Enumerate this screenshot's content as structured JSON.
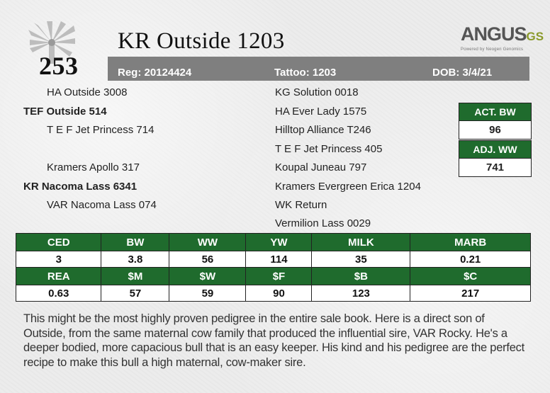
{
  "header": {
    "lot": "253",
    "name": "KR Outside 1203",
    "reg": "Reg: 20124424",
    "tattoo": "Tattoo: 1203",
    "dob": "DOB: 3/4/21"
  },
  "logo": {
    "main": "ANGUS",
    "suffix": "GS",
    "tagline": "Powered by Neogen Genomics"
  },
  "pedigree": {
    "sire_sire": "HA Outside 3008",
    "sire": "TEF Outside 514",
    "sire_dam": "T E F Jet Princess 714",
    "dam_sire": "Kramers Apollo 317",
    "dam": "KR Nacoma Lass 6341",
    "dam_dam": "VAR Nacoma Lass 074",
    "right": [
      "KG Solution 0018",
      "HA Ever Lady 1575",
      "Hilltop Alliance T246",
      "T E F Jet Princess 405",
      "Koupal Juneau 797",
      "Kramers Evergreen Erica 1204",
      "WK Return",
      "Vermilion Lass 0029"
    ]
  },
  "performance": {
    "act_bw": {
      "label": "ACT. BW",
      "value": "96"
    },
    "adj_ww": {
      "label": "ADJ. WW",
      "value": "741"
    }
  },
  "epd": {
    "row1_labels": [
      "CED",
      "BW",
      "WW",
      "YW",
      "MILK",
      "MARB"
    ],
    "row1_values": [
      "3",
      "3.8",
      "56",
      "114",
      "35",
      "0.21"
    ],
    "row2_labels": [
      "REA",
      "$M",
      "$W",
      "$F",
      "$B",
      "$C"
    ],
    "row2_values": [
      "0.63",
      "57",
      "59",
      "90",
      "123",
      "217"
    ]
  },
  "description": "This might be the most highly proven pedigree in the entire sale book. Here is a direct son of Outside, from the same maternal cow family that produced the influential sire, VAR Rocky. He's a deeper bodied, more capacious bull that is an easy keeper. His kind and his pedigree are the perfect recipe to make this bull a high maternal, cow-maker sire.",
  "colors": {
    "header_green": "#1f6b2d",
    "info_bar_gray": "#7f7f7f",
    "logo_green": "#8a9a2a"
  }
}
